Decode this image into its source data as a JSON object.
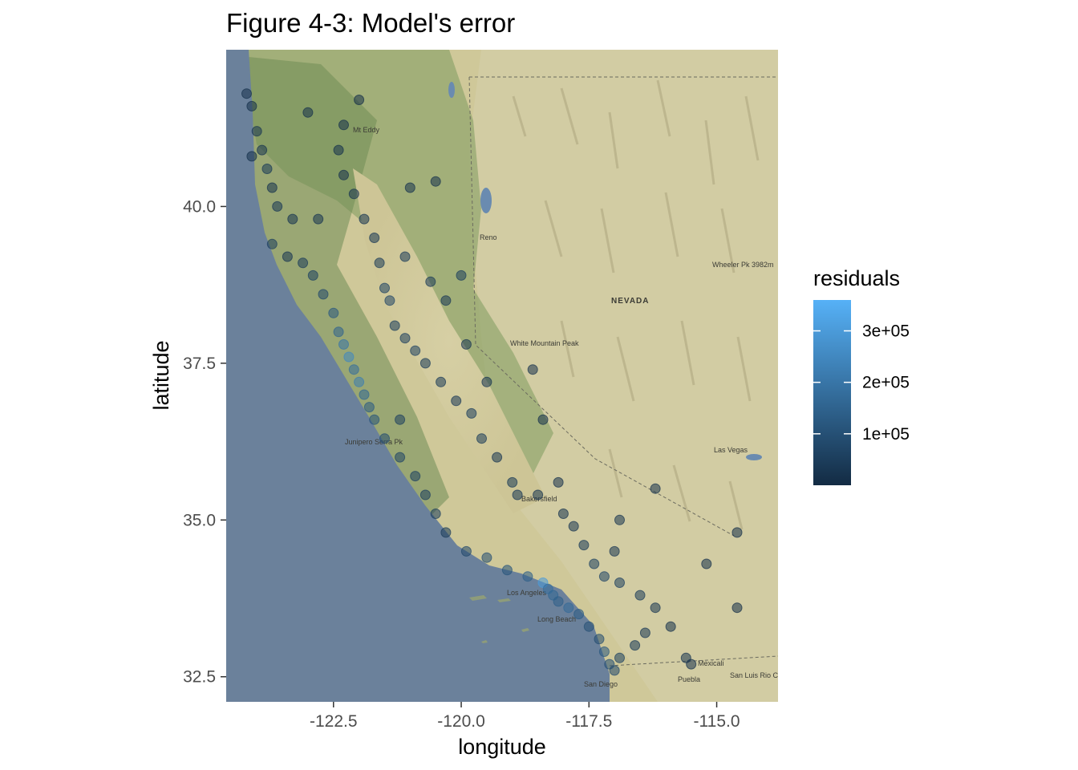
{
  "chart_data": {
    "type": "scatter",
    "title": "Figure 4-3: Model's error",
    "xlabel": "longitude",
    "ylabel": "latitude",
    "xlim": [
      -124.6,
      -113.8
    ],
    "ylim": [
      32.1,
      42.5
    ],
    "x_ticks": [
      -122.5,
      -120.0,
      -117.5,
      -115.0
    ],
    "x_tick_labels": [
      "-122.5",
      "-120.0",
      "-117.5",
      "-115.0"
    ],
    "y_ticks": [
      32.5,
      35.0,
      37.5,
      40.0
    ],
    "y_tick_labels": [
      "32.5",
      "35.0",
      "37.5",
      "40.0"
    ],
    "grid": false,
    "basemap": "terrain map of California and Nevada",
    "point_opacity": 0.55,
    "color_variable": "residuals",
    "legend": {
      "title": "residuals",
      "placement": "right",
      "range": [
        0,
        360000
      ],
      "labels": [
        "3e+05",
        "2e+05",
        "1e+05"
      ],
      "label_values": [
        300000,
        200000,
        100000
      ],
      "color_low": "#132B43",
      "color_high": "#56B1F7"
    },
    "map_labels": [
      "Reno",
      "NEVADA",
      "White Mountain Peak",
      "Wheeler Pk 3982m",
      "Las Vegas",
      "Los Angeles",
      "Long Beach",
      "San Diego",
      "Mexicali",
      "San Luis Rio Colorado",
      "Puebla",
      "Bakersfield",
      "Junipero Serra Pk",
      "Mt Eddy"
    ],
    "series": [
      {
        "points": [
          [
            -124.2,
            41.8,
            20000
          ],
          [
            -124.1,
            41.6,
            15000
          ],
          [
            -124.0,
            41.2,
            30000
          ],
          [
            -123.9,
            40.9,
            25000
          ],
          [
            -124.1,
            40.8,
            18000
          ],
          [
            -123.8,
            40.6,
            40000
          ],
          [
            -123.7,
            40.3,
            22000
          ],
          [
            -123.6,
            40.0,
            35000
          ],
          [
            -123.3,
            39.8,
            28000
          ],
          [
            -123.7,
            39.4,
            50000
          ],
          [
            -123.4,
            39.2,
            30000
          ],
          [
            -123.1,
            39.1,
            45000
          ],
          [
            -122.9,
            38.9,
            60000
          ],
          [
            -122.7,
            38.6,
            80000
          ],
          [
            -122.5,
            38.3,
            120000
          ],
          [
            -122.4,
            38.0,
            150000
          ],
          [
            -122.3,
            37.8,
            200000
          ],
          [
            -122.2,
            37.6,
            250000
          ],
          [
            -122.1,
            37.4,
            180000
          ],
          [
            -122.0,
            37.2,
            220000
          ],
          [
            -121.9,
            37.0,
            160000
          ],
          [
            -121.8,
            36.8,
            130000
          ],
          [
            -121.7,
            36.6,
            110000
          ],
          [
            -121.5,
            36.3,
            90000
          ],
          [
            -121.2,
            36.0,
            70000
          ],
          [
            -120.9,
            35.7,
            60000
          ],
          [
            -120.7,
            35.4,
            55000
          ],
          [
            -120.5,
            35.1,
            50000
          ],
          [
            -120.3,
            34.8,
            45000
          ],
          [
            -119.9,
            34.5,
            80000
          ],
          [
            -119.5,
            34.4,
            95000
          ],
          [
            -119.1,
            34.2,
            110000
          ],
          [
            -118.7,
            34.1,
            140000
          ],
          [
            -118.4,
            34.0,
            300000
          ],
          [
            -118.3,
            33.9,
            180000
          ],
          [
            -118.2,
            33.8,
            160000
          ],
          [
            -118.1,
            33.7,
            140000
          ],
          [
            -117.9,
            33.6,
            170000
          ],
          [
            -117.7,
            33.5,
            130000
          ],
          [
            -117.5,
            33.3,
            100000
          ],
          [
            -117.3,
            33.1,
            90000
          ],
          [
            -117.2,
            32.9,
            120000
          ],
          [
            -117.1,
            32.7,
            100000
          ],
          [
            -117.0,
            32.6,
            80000
          ],
          [
            -116.9,
            32.8,
            60000
          ],
          [
            -116.6,
            33.0,
            40000
          ],
          [
            -116.4,
            33.2,
            35000
          ],
          [
            -116.2,
            33.6,
            30000
          ],
          [
            -115.6,
            32.8,
            25000
          ],
          [
            -115.5,
            32.7,
            20000
          ],
          [
            -115.9,
            33.3,
            15000
          ],
          [
            -116.5,
            33.8,
            45000
          ],
          [
            -116.9,
            34.0,
            55000
          ],
          [
            -117.2,
            34.1,
            70000
          ],
          [
            -117.4,
            34.3,
            60000
          ],
          [
            -117.6,
            34.6,
            40000
          ],
          [
            -117.8,
            34.9,
            30000
          ],
          [
            -118.0,
            35.1,
            25000
          ],
          [
            -118.1,
            35.6,
            20000
          ],
          [
            -118.5,
            35.4,
            30000
          ],
          [
            -118.9,
            35.4,
            35000
          ],
          [
            -119.0,
            35.6,
            40000
          ],
          [
            -119.3,
            36.0,
            30000
          ],
          [
            -119.6,
            36.3,
            45000
          ],
          [
            -119.8,
            36.7,
            50000
          ],
          [
            -120.1,
            36.9,
            35000
          ],
          [
            -120.4,
            37.2,
            40000
          ],
          [
            -120.7,
            37.5,
            45000
          ],
          [
            -120.9,
            37.7,
            60000
          ],
          [
            -121.1,
            37.9,
            55000
          ],
          [
            -121.3,
            38.1,
            50000
          ],
          [
            -121.4,
            38.5,
            70000
          ],
          [
            -121.5,
            38.7,
            65000
          ],
          [
            -121.6,
            39.1,
            40000
          ],
          [
            -121.7,
            39.5,
            35000
          ],
          [
            -121.9,
            39.8,
            30000
          ],
          [
            -122.1,
            40.2,
            25000
          ],
          [
            -122.3,
            40.5,
            20000
          ],
          [
            -122.4,
            40.9,
            18000
          ],
          [
            -122.3,
            41.3,
            15000
          ],
          [
            -120.6,
            38.8,
            40000
          ],
          [
            -120.3,
            38.5,
            35000
          ],
          [
            -120.0,
            38.9,
            50000
          ],
          [
            -119.9,
            37.8,
            30000
          ],
          [
            -119.5,
            37.2,
            25000
          ],
          [
            -118.6,
            37.4,
            20000
          ],
          [
            -118.4,
            36.6,
            15000
          ],
          [
            -114.6,
            34.8,
            10000
          ],
          [
            -114.6,
            33.6,
            12000
          ],
          [
            -115.2,
            34.3,
            15000
          ],
          [
            -116.2,
            35.5,
            18000
          ],
          [
            -116.9,
            35.0,
            25000
          ],
          [
            -117.0,
            34.5,
            30000
          ],
          [
            -121.0,
            40.3,
            22000
          ],
          [
            -120.5,
            40.4,
            18000
          ],
          [
            -122.0,
            41.7,
            12000
          ],
          [
            -123.0,
            41.5,
            15000
          ],
          [
            -122.8,
            39.8,
            28000
          ],
          [
            -121.1,
            39.2,
            45000
          ],
          [
            -121.2,
            36.6,
            55000
          ]
        ]
      }
    ]
  }
}
